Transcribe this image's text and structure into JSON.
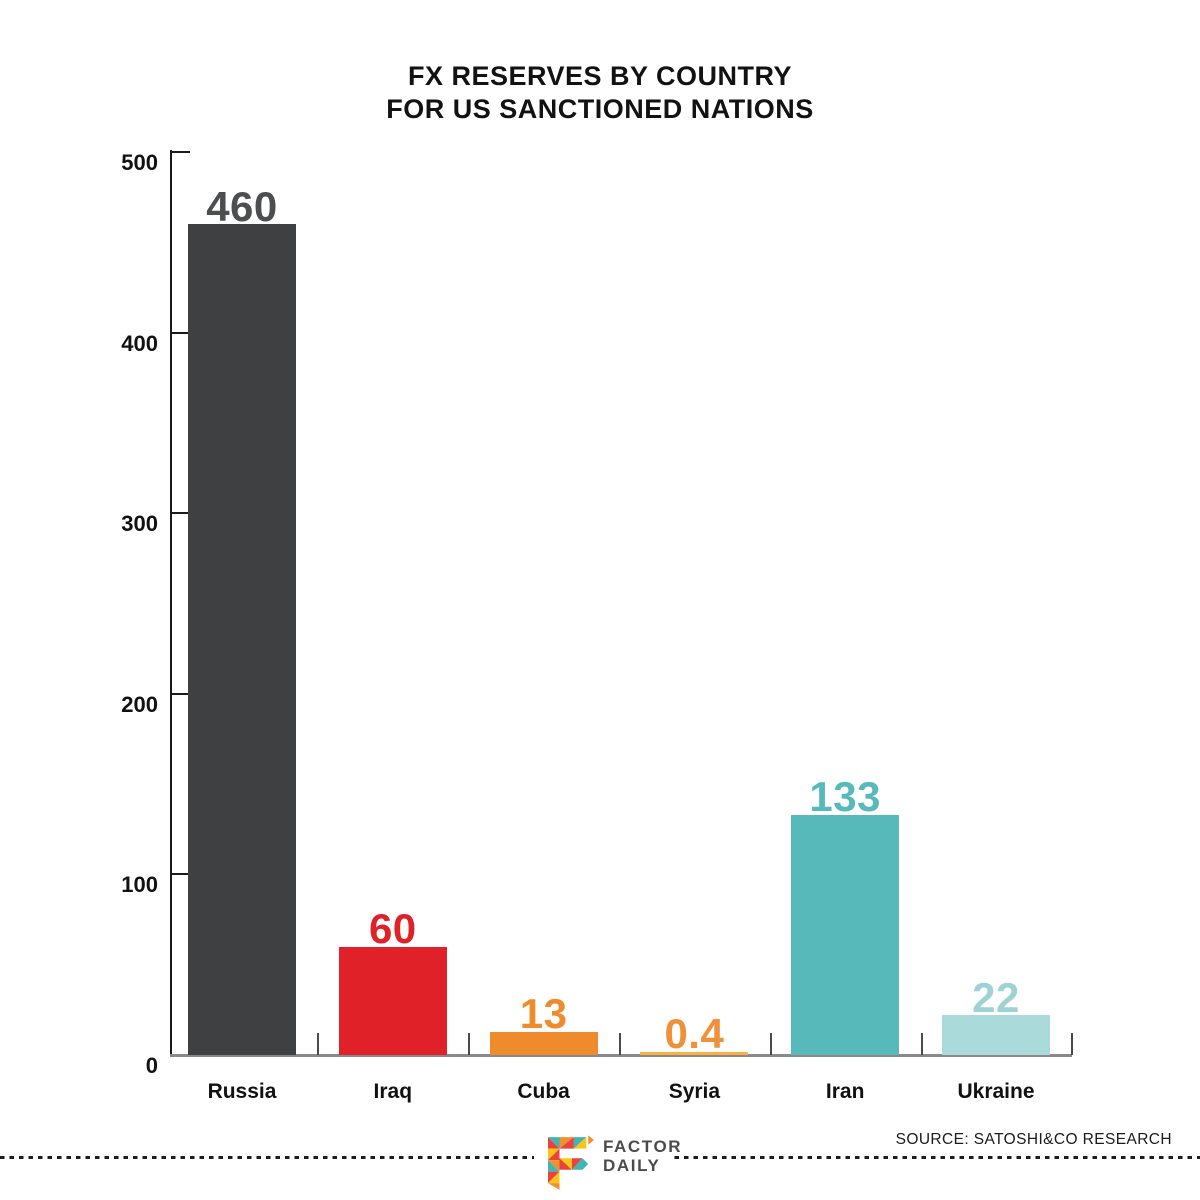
{
  "title": {
    "line1": "FX RESERVES BY COUNTRY",
    "line2": "FOR US SANCTIONED NATIONS"
  },
  "chart_data": {
    "type": "bar",
    "title": "FX RESERVES BY COUNTRY FOR US SANCTIONED NATIONS",
    "categories": [
      "Russia",
      "Iraq",
      "Cuba",
      "Syria",
      "Iran",
      "Ukraine"
    ],
    "values": [
      460,
      60,
      13,
      0.4,
      133,
      22
    ],
    "value_labels": [
      "460",
      "60",
      "13",
      "0.4",
      "133",
      "22"
    ],
    "bar_colors": [
      "#3F4042",
      "#E02127",
      "#EE8B2D",
      "#FBB040",
      "#57B9BA",
      "#ABDADB"
    ],
    "value_label_colors": [
      "#4D4E50",
      "#E02127",
      "#EE8B2D",
      "#F0913A",
      "#57B9BA",
      "#9FD2D4"
    ],
    "xlabel": "",
    "ylabel": "",
    "ylim": [
      0,
      500
    ],
    "y_ticks": [
      0,
      100,
      200,
      300,
      400,
      500
    ],
    "grid": false,
    "legend": "none",
    "axis_colors": {
      "y_axis": "#1A1A1A",
      "x_axis": "#8A8A8A"
    }
  },
  "footer": {
    "logo": {
      "name": "factor-daily-logo",
      "line1": "FACTOR",
      "line2": "DAILY"
    },
    "source": "SOURCE: SATOSHI&CO RESEARCH",
    "logo_colors": {
      "red": "#E8433C",
      "orange": "#F0912F",
      "yellow": "#FCC515",
      "teal": "#41B5B5"
    }
  }
}
